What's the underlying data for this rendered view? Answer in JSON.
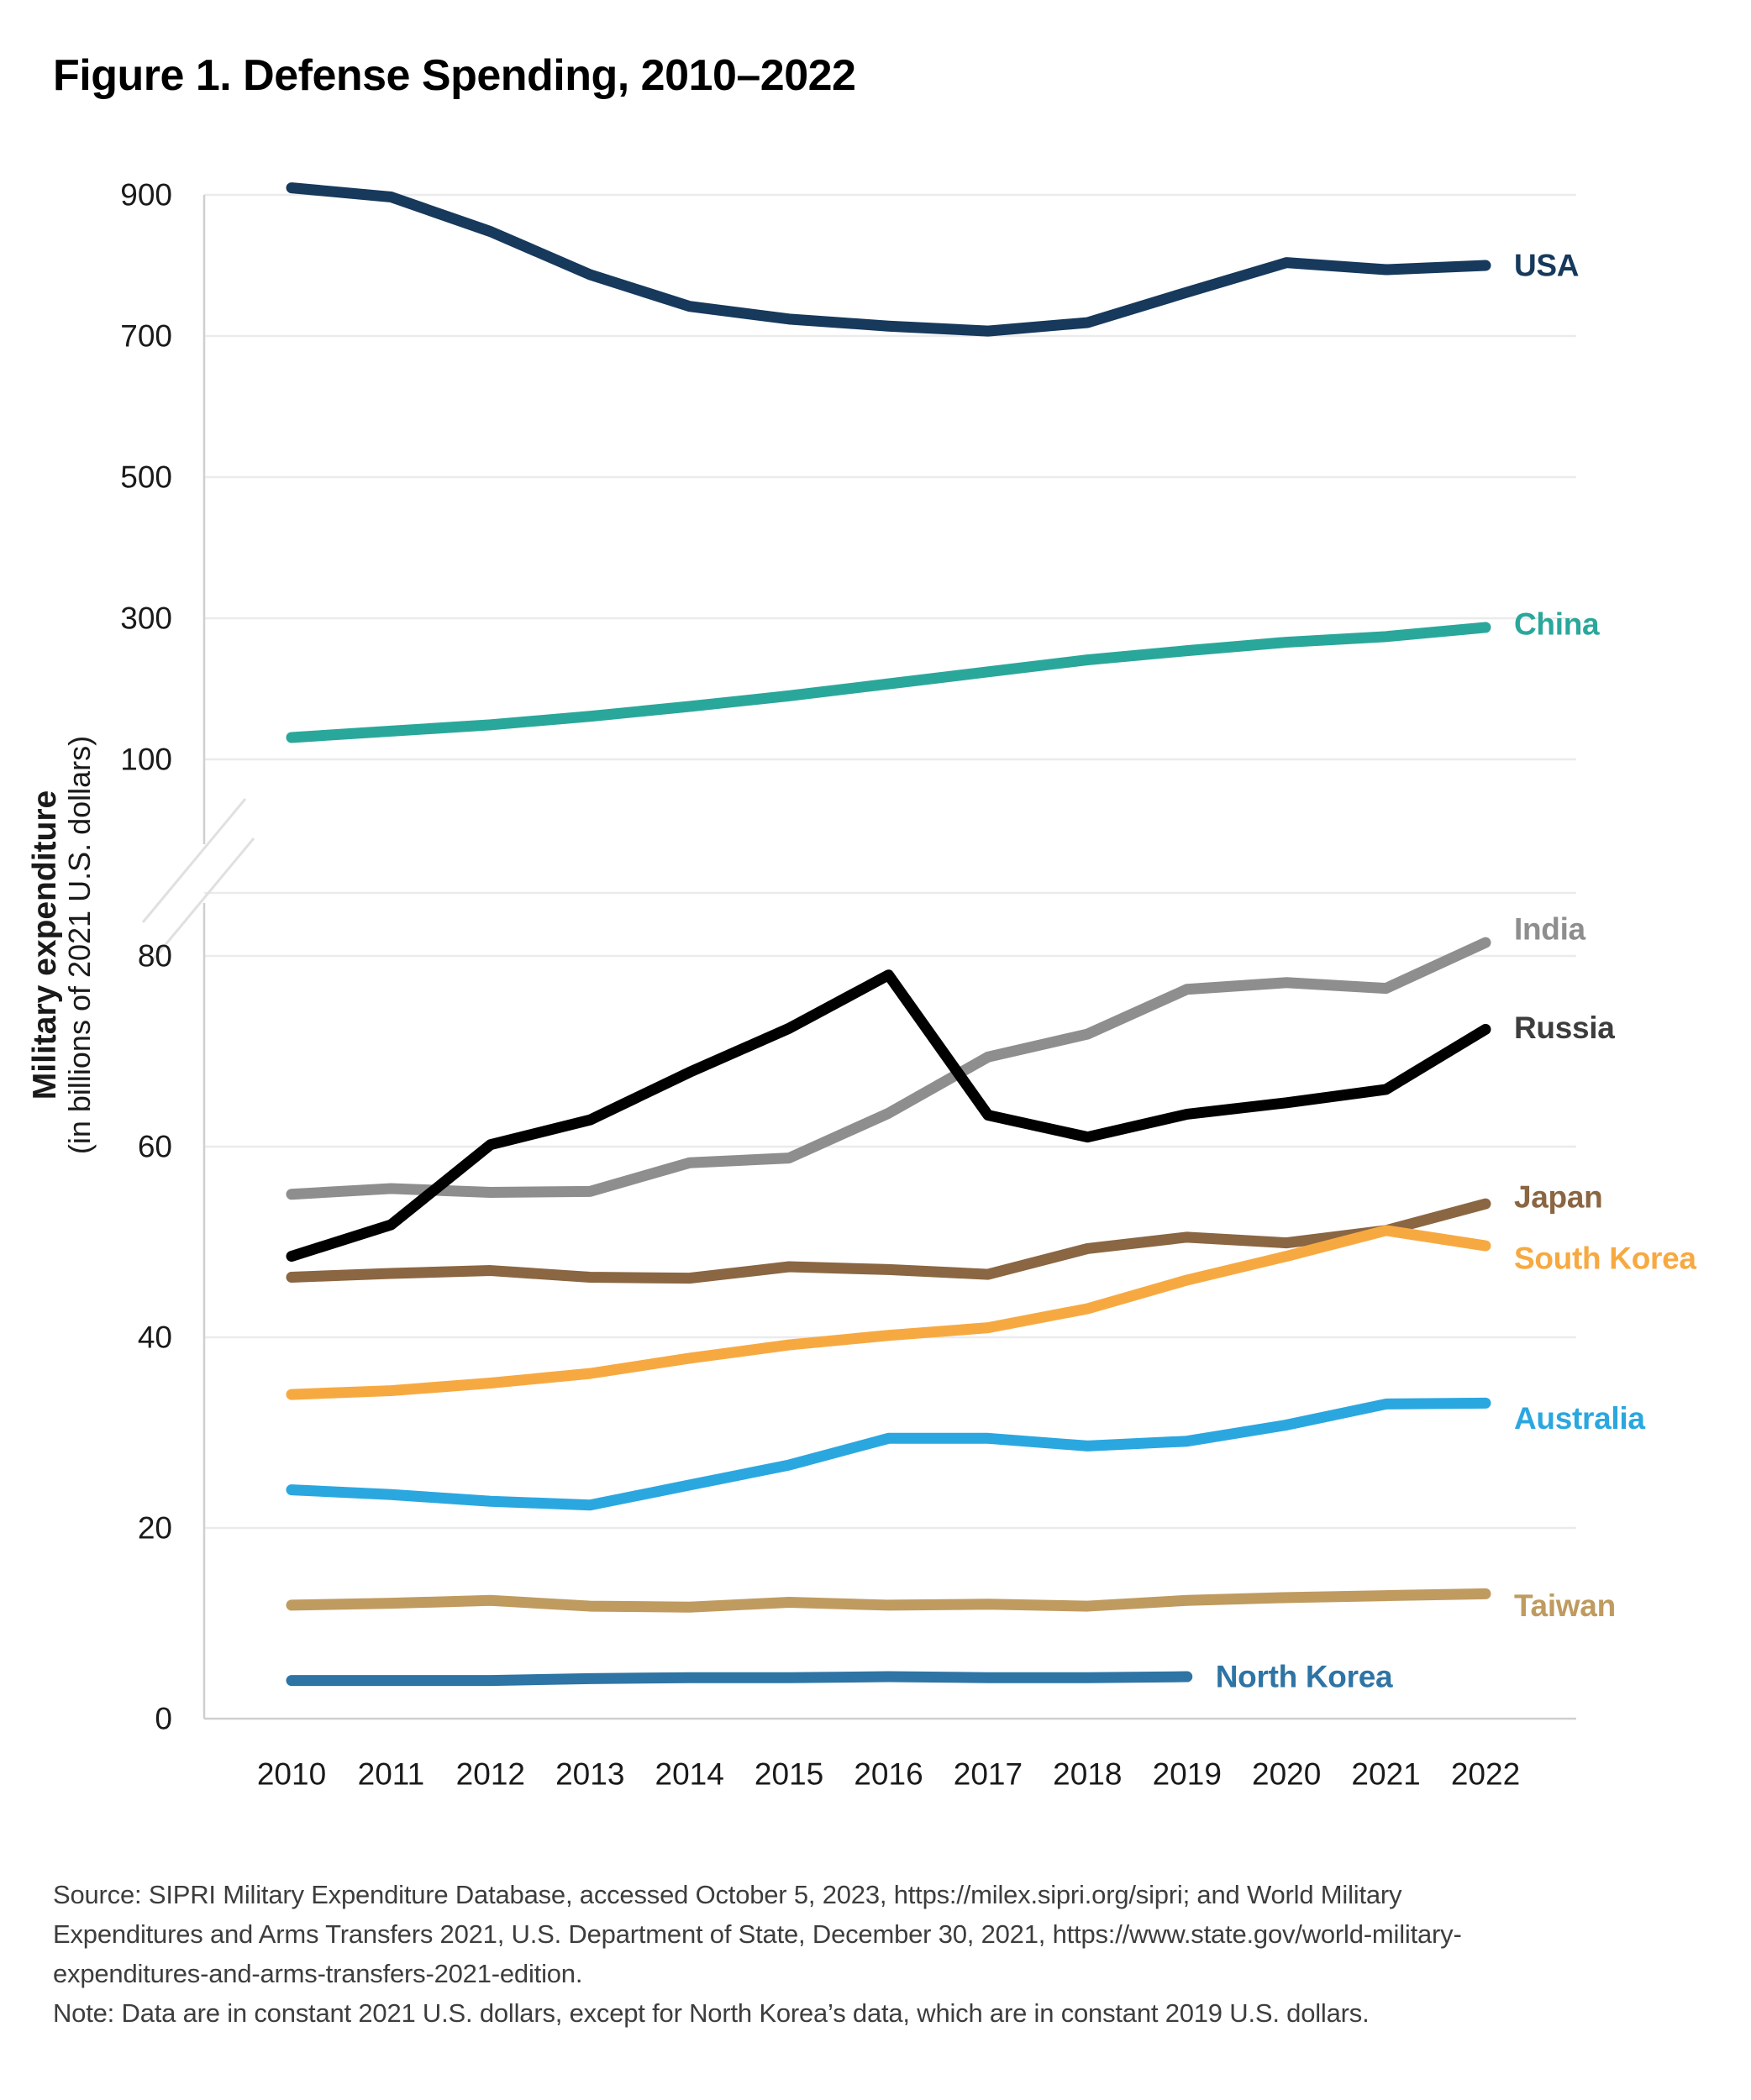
{
  "title": "Figure 1. Defense Spending, 2010–2022",
  "y_axis": {
    "title_bold": "Military expenditure",
    "title_sub": "(in billions of 2021 U.S. dollars)",
    "upper_ticks": [
      900,
      700,
      500,
      300,
      100
    ],
    "lower_ticks": [
      80,
      60,
      40,
      20,
      0
    ]
  },
  "source_note": {
    "lines": [
      "Source: SIPRI Military Expenditure Database, accessed October 5, 2023, https://milex.sipri.org/sipri; and World Military",
      "Expenditures and Arms Transfers 2021, U.S. Department of State, December 30, 2021, https://www.state.gov/world-military-",
      "expenditures-and-arms-transfers-2021-edition.",
      "Note: Data are in constant 2021 U.S. dollars, except for North Korea’s data, which are in constant 2019 U.S. dollars."
    ]
  },
  "chart_data": {
    "type": "line",
    "title": "Figure 1. Defense Spending, 2010–2022",
    "xlabel": "",
    "ylabel": "Military expenditure (in billions of 2021 U.S. dollars)",
    "grid": true,
    "legend_position": "right-of-line-ends",
    "broken_y_axis": true,
    "upper_panel_range": [
      100,
      900
    ],
    "lower_panel_range": [
      0,
      86.6
    ],
    "x": [
      2010,
      2011,
      2012,
      2013,
      2014,
      2015,
      2016,
      2017,
      2018,
      2019,
      2020,
      2021,
      2022
    ],
    "series": [
      {
        "name": "USA",
        "panel": "upper",
        "color": "#16395C",
        "label_color": "#16395C",
        "label_dy": 0,
        "values": [
          910,
          897,
          848,
          787,
          742,
          724,
          714,
          707,
          719,
          762,
          804,
          794,
          800
        ]
      },
      {
        "name": "China",
        "panel": "upper",
        "color": "#2AA79B",
        "label_color": "#2AA79B",
        "label_dy": -4,
        "values": [
          131,
          140,
          149,
          161,
          175,
          190,
          207,
          224,
          241,
          254,
          266,
          274,
          287
        ]
      },
      {
        "name": "India",
        "panel": "lower",
        "color": "#8E8E8E",
        "label_color": "#8E8E8E",
        "label_dy": -16,
        "values": [
          55.0,
          55.6,
          55.2,
          55.3,
          58.3,
          58.8,
          63.5,
          69.4,
          71.8,
          76.5,
          77.2,
          76.6,
          81.4
        ]
      },
      {
        "name": "Russia",
        "panel": "lower",
        "color": "#000000",
        "label_color": "#3D3D3D",
        "label_dy": -2,
        "values": [
          48.5,
          51.8,
          60.2,
          62.8,
          67.8,
          72.4,
          78.0,
          63.3,
          61.0,
          63.4,
          64.6,
          66.0,
          72.3
        ]
      },
      {
        "name": "Japan",
        "panel": "lower",
        "color": "#8A6642",
        "label_color": "#8A6642",
        "label_dy": -8,
        "values": [
          46.3,
          46.7,
          47.0,
          46.3,
          46.2,
          47.4,
          47.1,
          46.6,
          49.3,
          50.5,
          49.9,
          51.2,
          54.0
        ]
      },
      {
        "name": "South Korea",
        "panel": "lower",
        "color": "#F7A941",
        "label_color": "#F7A941",
        "label_dy": 15,
        "values": [
          34.0,
          34.4,
          35.2,
          36.2,
          37.8,
          39.2,
          40.2,
          41.0,
          43.0,
          46.0,
          48.5,
          51.2,
          49.6
        ]
      },
      {
        "name": "Australia",
        "panel": "lower",
        "color": "#2BA7E0",
        "label_color": "#2BA7E0",
        "label_dy": 18,
        "values": [
          24.0,
          23.5,
          22.8,
          22.4,
          24.5,
          26.6,
          29.4,
          29.4,
          28.6,
          29.1,
          30.8,
          33.0,
          33.1
        ]
      },
      {
        "name": "Taiwan",
        "panel": "lower",
        "color": "#BF9B60",
        "label_color": "#BF9B60",
        "label_dy": 14,
        "values": [
          11.9,
          12.1,
          12.4,
          11.8,
          11.7,
          12.2,
          11.9,
          12.0,
          11.8,
          12.4,
          12.7,
          12.9,
          13.1
        ]
      },
      {
        "name": "North Korea",
        "panel": "lower",
        "color": "#2E74A4",
        "label_color": "#2E74A4",
        "label_dy": 0,
        "values": [
          4.0,
          4.0,
          4.0,
          4.2,
          4.3,
          4.3,
          4.4,
          4.3,
          4.3,
          4.4
        ]
      }
    ]
  },
  "layout_note": "broken y-axis line chart, gridlines light gray, line ends labeled at right"
}
